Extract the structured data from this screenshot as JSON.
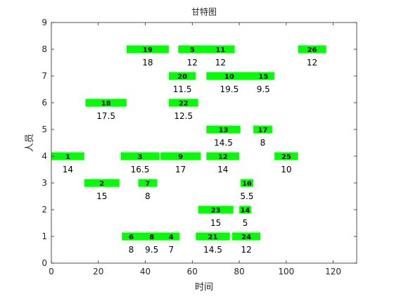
{
  "colors": {
    "bar": "#00ff00",
    "axis": "#262626",
    "background": "#ffffff"
  },
  "chart_data": {
    "type": "gantt",
    "title": "甘特图",
    "xlabel": "时间",
    "ylabel": "人员",
    "xlim": [
      0,
      130
    ],
    "ylim": [
      0,
      9
    ],
    "xticks": [
      0,
      20,
      40,
      60,
      80,
      100,
      120
    ],
    "yticks": [
      0,
      1,
      2,
      3,
      4,
      5,
      6,
      7,
      8,
      9
    ],
    "grid": false,
    "tasks": [
      {
        "id": "6",
        "person": 1,
        "start": 30,
        "end": 38,
        "duration": "8"
      },
      {
        "id": "8",
        "person": 1,
        "start": 38,
        "end": 47.5,
        "duration": "9.5"
      },
      {
        "id": "4",
        "person": 1,
        "start": 47.5,
        "end": 54.5,
        "duration": "7"
      },
      {
        "id": "21",
        "person": 1,
        "start": 61.5,
        "end": 76,
        "duration": "14.5"
      },
      {
        "id": "24",
        "person": 1,
        "start": 77,
        "end": 89,
        "duration": "12"
      },
      {
        "id": "23",
        "person": 2,
        "start": 62.5,
        "end": 77.5,
        "duration": "15"
      },
      {
        "id": "14",
        "person": 2,
        "start": 80,
        "end": 85,
        "duration": "5"
      },
      {
        "id": "2",
        "person": 3,
        "start": 14,
        "end": 29,
        "duration": "15"
      },
      {
        "id": "7",
        "person": 3,
        "start": 37,
        "end": 45,
        "duration": "8"
      },
      {
        "id": "16",
        "person": 3,
        "start": 80.5,
        "end": 86,
        "duration": "5.5"
      },
      {
        "id": "1",
        "person": 4,
        "start": 0,
        "end": 14,
        "duration": "14"
      },
      {
        "id": "3",
        "person": 4,
        "start": 29.5,
        "end": 46,
        "duration": "16.5"
      },
      {
        "id": "9",
        "person": 4,
        "start": 46.5,
        "end": 63.5,
        "duration": "17"
      },
      {
        "id": "12",
        "person": 4,
        "start": 66,
        "end": 80,
        "duration": "14"
      },
      {
        "id": "25",
        "person": 4,
        "start": 95,
        "end": 105,
        "duration": "10"
      },
      {
        "id": "13",
        "person": 5,
        "start": 66,
        "end": 80.5,
        "duration": "14.5"
      },
      {
        "id": "17",
        "person": 5,
        "start": 86,
        "end": 94,
        "duration": "8"
      },
      {
        "id": "18",
        "person": 6,
        "start": 14.5,
        "end": 32,
        "duration": "17.5"
      },
      {
        "id": "22",
        "person": 6,
        "start": 50,
        "end": 62.5,
        "duration": "12.5"
      },
      {
        "id": "20",
        "person": 7,
        "start": 50,
        "end": 61.5,
        "duration": "11.5"
      },
      {
        "id": "10",
        "person": 7,
        "start": 66,
        "end": 85.5,
        "duration": "19.5"
      },
      {
        "id": "15",
        "person": 7,
        "start": 85.5,
        "end": 95,
        "duration": "9.5"
      },
      {
        "id": "19",
        "person": 8,
        "start": 32,
        "end": 50,
        "duration": "18"
      },
      {
        "id": "5",
        "person": 8,
        "start": 54,
        "end": 66,
        "duration": "12"
      },
      {
        "id": "11",
        "person": 8,
        "start": 66,
        "end": 78,
        "duration": "12"
      },
      {
        "id": "26",
        "person": 8,
        "start": 105,
        "end": 117,
        "duration": "12"
      }
    ]
  }
}
